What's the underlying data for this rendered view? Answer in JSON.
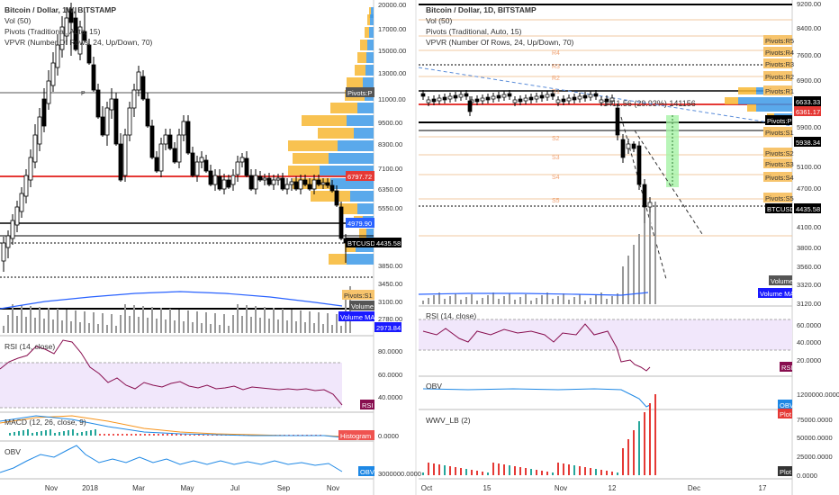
{
  "left": {
    "title": "Bitcoin / Dollar, 1W, BITSTAMP",
    "vol": "Vol (50)",
    "pivots": "Pivots (Traditional, Auto, 15)",
    "vpvr": "VPVR (Number Of Rows, 24, Up/Down, 70)",
    "axis": [
      "20000.00",
      "17000.00",
      "15000.00",
      "13000.00",
      "11000.00",
      "9500.00",
      "8300.00",
      "7100.00",
      "6350.00",
      "5550.00",
      "3850.00",
      "3450.00",
      "3100.00",
      "2780.00"
    ],
    "badges": {
      "pivotP": "Pivots:P",
      "price1": "6797.72",
      "price2": "4979.90",
      "btc": "BTCUSD",
      "btc_val": "4435.58",
      "pivotS1": "Pivots:S1",
      "volume": "Volume",
      "volume_ma": "Volume MA",
      "ma_val": "2973.84"
    },
    "rsi": {
      "label": "RSI (14, close)",
      "axis": [
        "80.0000",
        "60.0000",
        "40.0000"
      ],
      "badge": "RSI"
    },
    "macd": {
      "label": "MACD (12, 26, close, 9)",
      "badge": "Histogram",
      "axis": [
        "0.0000"
      ]
    },
    "obv": {
      "label": "OBV",
      "badge": "OBV",
      "axis": [
        "3000000.0000"
      ]
    },
    "xaxis": [
      "Nov",
      "2018",
      "Mar",
      "May",
      "Jul",
      "Sep",
      "Nov"
    ],
    "pivot_mark": "P"
  },
  "right": {
    "title": "Bitcoin / Dollar, 1D, BITSTAMP",
    "vol": "Vol (50)",
    "pivots": "Pivots (Traditional, Auto, 15)",
    "vpvr": "VPVR (Number Of Rows, 24, Up/Down, 70)",
    "axis": [
      "9200.00",
      "8400.00",
      "7600.00",
      "6900.00",
      "5900.00",
      "5100.00",
      "4700.00",
      "4100.00",
      "3800.00",
      "3560.00",
      "3320.00",
      "3120.00"
    ],
    "badges": {
      "r5": "Pivots:R5",
      "r4": "Pivots:R4",
      "r3": "Pivots:R3",
      "r2": "Pivots:R2",
      "r1": "Pivots:R1",
      "p1": "6633.33",
      "p2": "6361.17",
      "pivotP": "Pivots:P",
      "s1": "Pivots:S1",
      "s1val": "5938.34",
      "s2": "Pivots:S2",
      "s3": "Pivots:S3",
      "s4": "Pivots:S4",
      "s5": "Pivots:S5",
      "btc": "BTCUSD",
      "btc_val": "4435.58",
      "volume": "Volume",
      "volume_ma": "Volume MA"
    },
    "measure": "1411.56 (29.93%) 141156",
    "level_labels": [
      "R4",
      "R3",
      "R2",
      "R1",
      "S2",
      "S3",
      "S4",
      "S5"
    ],
    "rsi": {
      "label": "RSI (14, close)",
      "axis": [
        "60.0000",
        "40.0000",
        "20.0000"
      ],
      "badge": "RSI"
    },
    "obv": {
      "label": "OBV",
      "badge": "OBV",
      "axis": [
        "1200000.0000"
      ]
    },
    "wwv": {
      "label": "WWV_LB (2)",
      "badge": "Plot",
      "axis": [
        "75000.0000",
        "50000.0000",
        "25000.0000",
        "0.0000"
      ],
      "badge2": "Plot"
    },
    "xaxis": [
      "Oct",
      "15",
      "Nov",
      "12",
      "Dec",
      "17"
    ]
  },
  "colors": {
    "up": "#ffffff",
    "down": "#000000",
    "red_line": "#e53935",
    "vp_up": "#f7b733",
    "vp_down": "#3d9ae8",
    "rsi_fill": "#f1e7fb",
    "rsi_line": "#880e4f",
    "ma_blue": "#2962ff",
    "green_zone": "#a6f2a6"
  }
}
